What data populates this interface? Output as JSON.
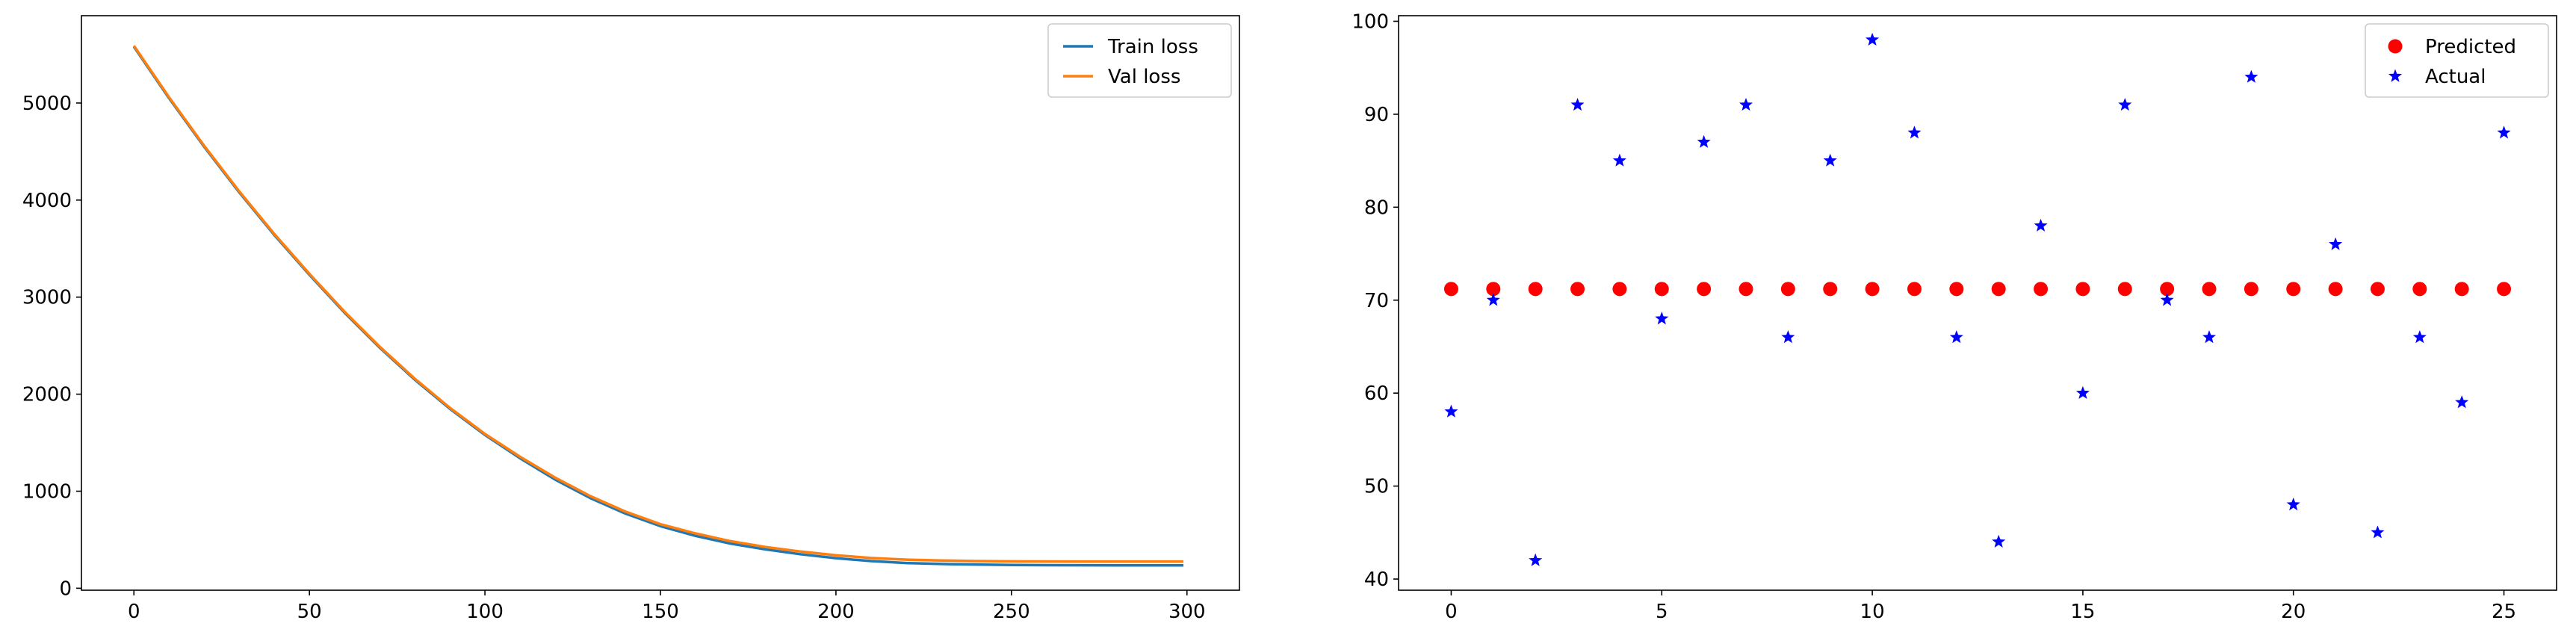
{
  "chart_data": [
    {
      "type": "line",
      "title": "",
      "xlabel": "",
      "ylabel": "",
      "xlim": [
        -14.95,
        314.95
      ],
      "ylim": [
        -20,
        5900
      ],
      "xticks": [
        0,
        50,
        100,
        150,
        200,
        250,
        300
      ],
      "yticks": [
        0,
        1000,
        2000,
        3000,
        4000,
        5000
      ],
      "grid": false,
      "legend": "top-right",
      "series": [
        {
          "name": "Train loss",
          "color": "#1f77b4",
          "x": [
            0,
            10,
            20,
            30,
            40,
            50,
            60,
            70,
            80,
            90,
            100,
            110,
            120,
            130,
            140,
            150,
            160,
            170,
            180,
            190,
            200,
            210,
            220,
            230,
            240,
            250,
            260,
            270,
            280,
            290,
            299
          ],
          "y": [
            5580,
            5050,
            4550,
            4080,
            3640,
            3230,
            2840,
            2480,
            2150,
            1850,
            1580,
            1340,
            1120,
            930,
            770,
            640,
            540,
            460,
            400,
            350,
            310,
            280,
            260,
            250,
            245,
            240,
            238,
            237,
            236,
            236,
            236
          ]
        },
        {
          "name": "Val loss",
          "color": "#ff7f0e",
          "x": [
            0,
            10,
            20,
            30,
            40,
            50,
            60,
            70,
            80,
            90,
            100,
            110,
            120,
            130,
            140,
            150,
            160,
            170,
            180,
            190,
            200,
            210,
            220,
            230,
            240,
            250,
            260,
            270,
            280,
            290,
            299
          ],
          "y": [
            5590,
            5060,
            4560,
            4090,
            3650,
            3240,
            2850,
            2490,
            2160,
            1860,
            1590,
            1355,
            1140,
            950,
            790,
            660,
            565,
            485,
            425,
            378,
            340,
            312,
            295,
            286,
            280,
            277,
            276,
            275,
            275,
            275,
            275
          ]
        }
      ]
    },
    {
      "type": "scatter",
      "title": "",
      "xlabel": "",
      "ylabel": "",
      "xlim": [
        -1.25,
        26.25
      ],
      "ylim": [
        38.8,
        100.6
      ],
      "xticks": [
        0,
        5,
        10,
        15,
        20,
        25
      ],
      "yticks": [
        40,
        50,
        60,
        70,
        80,
        90,
        100
      ],
      "grid": false,
      "legend": "top-right",
      "series": [
        {
          "name": "Predicted",
          "color": "#ff0000",
          "marker": "circle",
          "x": [
            0,
            1,
            2,
            3,
            4,
            5,
            6,
            7,
            8,
            9,
            10,
            11,
            12,
            13,
            14,
            15,
            16,
            17,
            18,
            19,
            20,
            21,
            22,
            23,
            24,
            25
          ],
          "y": [
            71.2,
            71.2,
            71.2,
            71.2,
            71.2,
            71.2,
            71.2,
            71.2,
            71.2,
            71.2,
            71.2,
            71.2,
            71.2,
            71.2,
            71.2,
            71.2,
            71.2,
            71.2,
            71.2,
            71.2,
            71.2,
            71.2,
            71.2,
            71.2,
            71.2,
            71.2
          ]
        },
        {
          "name": "Actual",
          "color": "#0000ff",
          "marker": "star",
          "x": [
            0,
            1,
            2,
            3,
            4,
            5,
            6,
            7,
            8,
            9,
            10,
            11,
            12,
            13,
            14,
            15,
            16,
            17,
            18,
            19,
            20,
            21,
            22,
            23,
            24,
            25
          ],
          "y": [
            58,
            70,
            42,
            91,
            85,
            68,
            87,
            91,
            66,
            85,
            98,
            88,
            66,
            44,
            78,
            60,
            91,
            70,
            66,
            94,
            48,
            76,
            45,
            66,
            59,
            88
          ]
        }
      ]
    }
  ]
}
